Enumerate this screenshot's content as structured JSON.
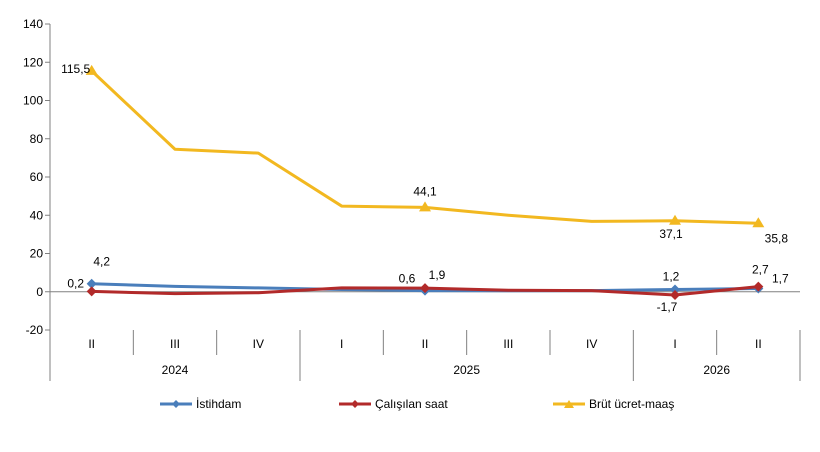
{
  "chart_data": {
    "type": "line",
    "quarters": [
      "II",
      "III",
      "IV",
      "I",
      "II",
      "III",
      "IV",
      "I",
      "II"
    ],
    "years": [
      {
        "label": "2024",
        "span": 3
      },
      {
        "label": "2025",
        "span": 4
      },
      {
        "label": "2026",
        "span": 2
      }
    ],
    "ylim": [
      -20,
      140
    ],
    "yticks": [
      -20,
      0,
      20,
      40,
      60,
      80,
      100,
      120,
      140
    ],
    "grid": false,
    "legend_position": "bottom",
    "series": [
      {
        "name": "İstihdam",
        "color": "#4A7EBB",
        "marker": "diamond",
        "values": [
          4.2,
          2.8,
          2.0,
          1.2,
          0.6,
          0.5,
          0.6,
          1.2,
          1.7
        ],
        "labels": {
          "0": "4,2",
          "4": "0,6",
          "7": "1,2",
          "8": "1,7"
        }
      },
      {
        "name": "Çalışılan saat",
        "color": "#B22A2A",
        "marker": "diamond",
        "values": [
          0.2,
          -1.0,
          -0.5,
          2.0,
          1.9,
          0.8,
          0.6,
          -1.7,
          2.7
        ],
        "labels": {
          "0": "0,2",
          "4": "1,9",
          "7": "-1,7",
          "8": "2,7"
        }
      },
      {
        "name": "Brüt ücret-maaş",
        "color": "#F2B820",
        "marker": "triangle",
        "values": [
          115.5,
          74.5,
          72.5,
          44.8,
          44.1,
          40.0,
          36.8,
          37.1,
          35.8
        ],
        "labels": {
          "0": "115,5",
          "4": "44,1",
          "7": "37,1",
          "8": "35,8"
        }
      }
    ]
  }
}
